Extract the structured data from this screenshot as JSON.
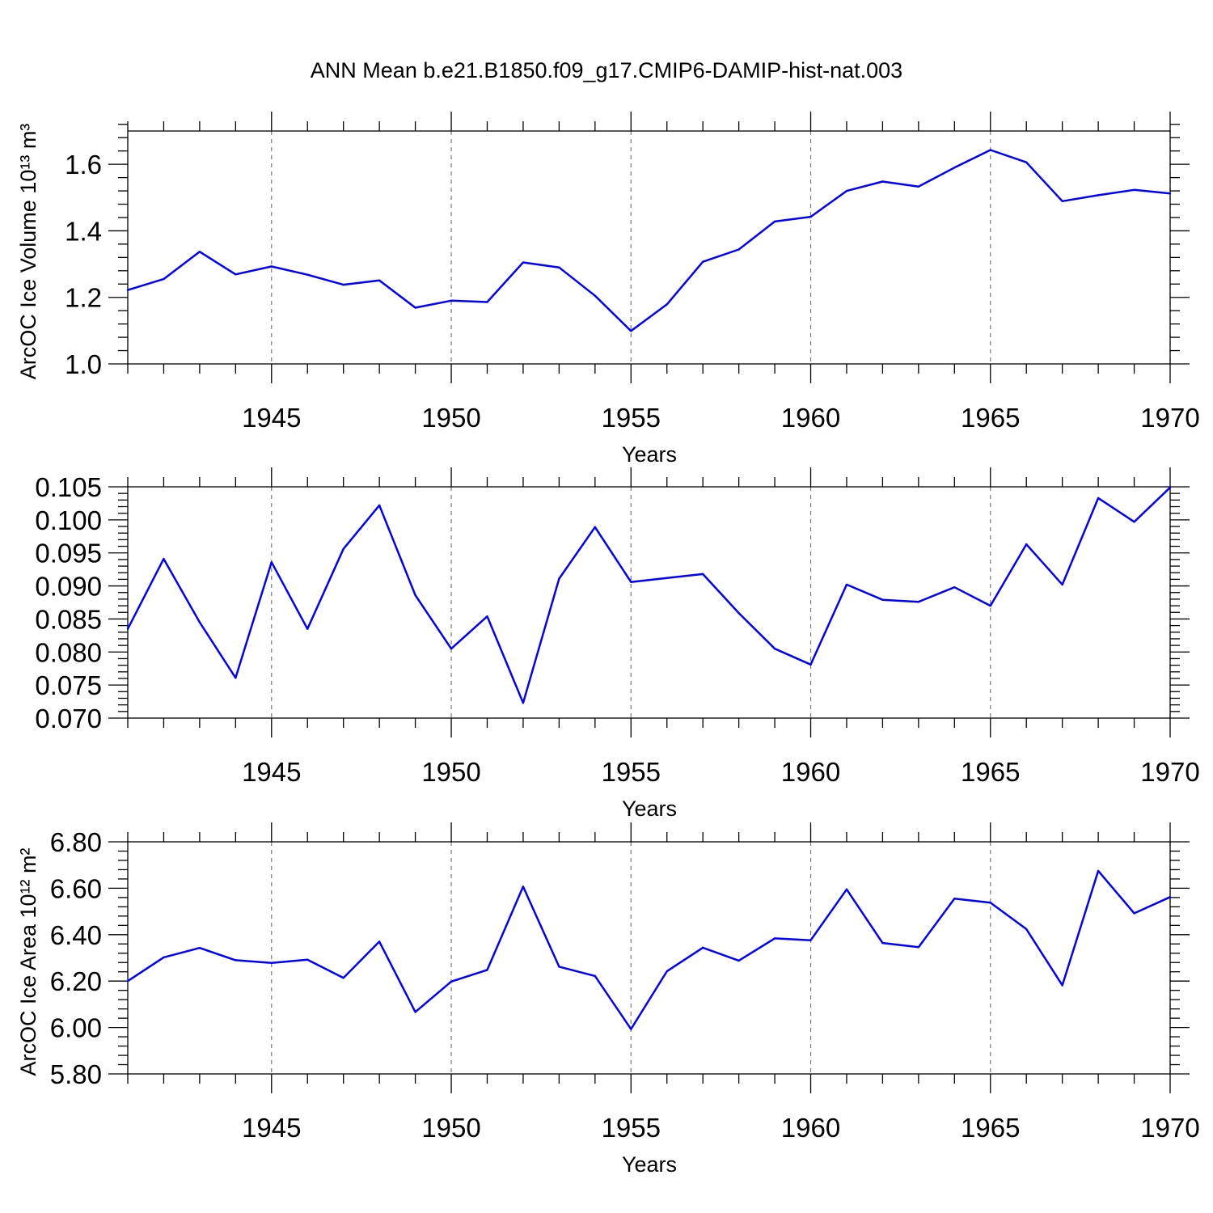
{
  "title": "ANN Mean b.e21.B1850.f09_g17.CMIP6-DAMIP-hist-nat.003",
  "colors": {
    "series": "#0000ff",
    "axis": "#000000",
    "grid": "#777777"
  },
  "chart_data": [
    {
      "type": "line",
      "ylabel": "ArcOC Ice Volume 10¹³ m³",
      "xlabel": "Years",
      "xlim": [
        1941,
        1970
      ],
      "ylim": [
        1.0,
        1.7
      ],
      "xticks": [
        1945,
        1950,
        1955,
        1960,
        1965,
        1970
      ],
      "xtick_labels": [
        "1945",
        "1950",
        "1955",
        "1960",
        "1965",
        "1970"
      ],
      "yticks": [
        1.0,
        1.2,
        1.4,
        1.6
      ],
      "ytick_labels": [
        "1.0",
        "1.2",
        "1.4",
        "1.6"
      ],
      "grid": "vertical dashed at major x ticks",
      "x": [
        1941,
        1942,
        1943,
        1944,
        1945,
        1946,
        1947,
        1948,
        1949,
        1950,
        1951,
        1952,
        1953,
        1954,
        1955,
        1956,
        1957,
        1958,
        1959,
        1960,
        1961,
        1962,
        1963,
        1964,
        1965,
        1966,
        1967,
        1968,
        1969,
        1970
      ],
      "values": [
        1.222,
        1.255,
        1.337,
        1.269,
        1.293,
        1.268,
        1.238,
        1.251,
        1.169,
        1.19,
        1.186,
        1.305,
        1.29,
        1.205,
        1.099,
        1.179,
        1.307,
        1.344,
        1.428,
        1.442,
        1.52,
        1.548,
        1.533,
        1.59,
        1.643,
        1.606,
        1.489,
        1.507,
        1.523,
        1.512
      ]
    },
    {
      "type": "line",
      "ylabel": "",
      "xlabel": "Years",
      "xlim": [
        1941,
        1970
      ],
      "ylim": [
        0.07,
        0.105
      ],
      "xticks": [
        1945,
        1950,
        1955,
        1960,
        1965,
        1970
      ],
      "xtick_labels": [
        "1945",
        "1950",
        "1955",
        "1960",
        "1965",
        "1970"
      ],
      "yticks": [
        0.07,
        0.075,
        0.08,
        0.085,
        0.09,
        0.095,
        0.1,
        0.105
      ],
      "ytick_labels": [
        "0.070",
        "0.075",
        "0.080",
        "0.085",
        "0.090",
        "0.095",
        "0.100",
        "0.105"
      ],
      "grid": "vertical dashed at major x ticks",
      "x": [
        1941,
        1942,
        1943,
        1944,
        1945,
        1946,
        1947,
        1948,
        1949,
        1950,
        1951,
        1952,
        1953,
        1954,
        1955,
        1956,
        1957,
        1958,
        1959,
        1960,
        1961,
        1962,
        1963,
        1964,
        1965,
        1966,
        1967,
        1968,
        1969,
        1970
      ],
      "values": [
        0.0835,
        0.0941,
        0.0845,
        0.0761,
        0.0936,
        0.0835,
        0.0956,
        0.1022,
        0.0886,
        0.0805,
        0.0854,
        0.0723,
        0.0911,
        0.0989,
        0.0906,
        0.0912,
        0.0918,
        0.0859,
        0.0805,
        0.0781,
        0.0902,
        0.0879,
        0.0876,
        0.0898,
        0.087,
        0.0963,
        0.0902,
        0.1033,
        0.0997,
        0.1049
      ]
    },
    {
      "type": "line",
      "ylabel": "ArcOC Ice Area 10¹² m²",
      "xlabel": "Years",
      "xlim": [
        1941,
        1970
      ],
      "ylim": [
        5.8,
        6.8
      ],
      "xticks": [
        1945,
        1950,
        1955,
        1960,
        1965,
        1970
      ],
      "xtick_labels": [
        "1945",
        "1950",
        "1955",
        "1960",
        "1965",
        "1970"
      ],
      "yticks": [
        5.8,
        6.0,
        6.2,
        6.4,
        6.6,
        6.8
      ],
      "ytick_labels": [
        "5.80",
        "6.00",
        "6.20",
        "6.40",
        "6.60",
        "6.80"
      ],
      "grid": "vertical dashed at major x ticks",
      "x": [
        1941,
        1942,
        1943,
        1944,
        1945,
        1946,
        1947,
        1948,
        1949,
        1950,
        1951,
        1952,
        1953,
        1954,
        1955,
        1956,
        1957,
        1958,
        1959,
        1960,
        1961,
        1962,
        1963,
        1964,
        1965,
        1966,
        1967,
        1968,
        1969,
        1970
      ],
      "values": [
        6.2,
        6.302,
        6.343,
        6.29,
        6.278,
        6.292,
        6.214,
        6.37,
        6.067,
        6.198,
        6.248,
        6.607,
        6.262,
        6.222,
        5.993,
        6.242,
        6.344,
        6.288,
        6.384,
        6.376,
        6.595,
        6.364,
        6.346,
        6.555,
        6.538,
        6.424,
        6.182,
        6.675,
        6.492,
        6.562
      ]
    }
  ]
}
